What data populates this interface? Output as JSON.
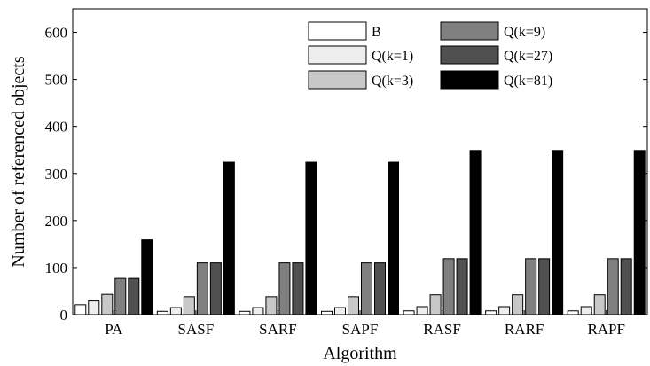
{
  "chart_data": {
    "type": "bar",
    "title": "",
    "xlabel": "Algorithm",
    "ylabel": "Number of referenced objects",
    "ylim": [
      0,
      650
    ],
    "yticks": [
      0,
      100,
      200,
      300,
      400,
      500,
      600
    ],
    "grid": false,
    "legend_position": "top-right",
    "categories": [
      "PA",
      "SASF",
      "SARF",
      "SAPF",
      "RASF",
      "RARF",
      "RAPF"
    ],
    "series": [
      {
        "name": "B",
        "color": "#ffffff",
        "values": [
          21,
          7,
          7,
          7,
          8,
          8,
          8
        ]
      },
      {
        "name": "Q(k=1)",
        "color": "#eeeeee",
        "values": [
          29,
          15,
          15,
          15,
          17,
          17,
          17
        ]
      },
      {
        "name": "Q(k=3)",
        "color": "#c8c8c8",
        "values": [
          43,
          38,
          38,
          38,
          42,
          42,
          42
        ]
      },
      {
        "name": "Q(k=9)",
        "color": "#808080",
        "values": [
          77,
          110,
          110,
          110,
          119,
          119,
          119
        ]
      },
      {
        "name": "Q(k=27)",
        "color": "#505050",
        "values": [
          77,
          110,
          110,
          110,
          119,
          119,
          119
        ]
      },
      {
        "name": "Q(k=81)",
        "color": "#000000",
        "values": [
          159,
          324,
          324,
          324,
          349,
          349,
          349
        ]
      }
    ]
  }
}
